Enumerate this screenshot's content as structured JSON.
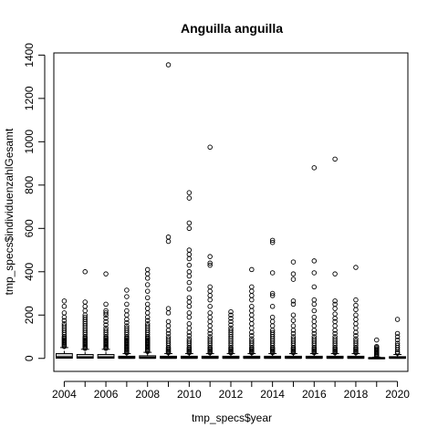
{
  "chart_data": {
    "type": "boxplot",
    "title": "Anguilla anguilla",
    "xlabel": "tmp_specs$year",
    "ylabel": "tmp_specs$individuenzahlGesamt",
    "ylim": [
      -60,
      1410
    ],
    "yticks": [
      0,
      200,
      400,
      600,
      800,
      1000,
      1200,
      1400
    ],
    "x_tick_labels": [
      "2004",
      "2006",
      "2008",
      "2010",
      "2012",
      "2014",
      "2016",
      "2018",
      "2020"
    ],
    "grid": false,
    "box_fill": "#d3d3d3",
    "series": [
      {
        "year": 2004,
        "q1": 1,
        "median": 5,
        "q3": 22,
        "whisker_low": 1,
        "whisker_high": 50,
        "outliers": [
          265,
          240,
          210,
          190,
          175,
          160,
          150,
          140,
          130,
          120,
          110,
          100,
          95,
          90,
          85,
          80,
          75,
          70,
          65,
          60,
          55
        ]
      },
      {
        "year": 2005,
        "q1": 1,
        "median": 4,
        "q3": 18,
        "whisker_low": 1,
        "whisker_high": 42,
        "outliers": [
          400,
          260,
          240,
          220,
          200,
          190,
          180,
          170,
          160,
          150,
          140,
          130,
          120,
          110,
          100,
          95,
          90,
          85,
          80,
          75,
          70,
          65,
          60,
          55,
          50,
          46
        ]
      },
      {
        "year": 2006,
        "q1": 1,
        "median": 4,
        "q3": 18,
        "whisker_low": 1,
        "whisker_high": 42,
        "outliers": [
          390,
          250,
          220,
          210,
          200,
          185,
          170,
          155,
          140,
          130,
          120,
          110,
          100,
          95,
          90,
          85,
          80,
          75,
          70,
          65,
          60,
          55,
          50,
          46
        ]
      },
      {
        "year": 2007,
        "q1": 1,
        "median": 3,
        "q3": 10,
        "whisker_low": 1,
        "whisker_high": 22,
        "outliers": [
          315,
          285,
          250,
          220,
          200,
          180,
          165,
          150,
          140,
          130,
          120,
          110,
          100,
          95,
          90,
          85,
          80,
          75,
          70,
          65,
          60,
          55,
          50,
          45,
          40,
          35,
          30,
          26
        ]
      },
      {
        "year": 2008,
        "q1": 1,
        "median": 3,
        "q3": 12,
        "whisker_low": 1,
        "whisker_high": 28,
        "outliers": [
          410,
          390,
          370,
          340,
          310,
          280,
          250,
          230,
          210,
          190,
          175,
          160,
          150,
          140,
          130,
          120,
          110,
          100,
          95,
          90,
          85,
          80,
          75,
          70,
          65,
          60,
          55,
          50,
          45,
          40,
          35,
          32
        ]
      },
      {
        "year": 2009,
        "q1": 1,
        "median": 3,
        "q3": 10,
        "whisker_low": 1,
        "whisker_high": 22,
        "outliers": [
          1355,
          560,
          540,
          230,
          210,
          170,
          150,
          130,
          115,
          100,
          90,
          80,
          70,
          60,
          50,
          45,
          40,
          35,
          30,
          26
        ]
      },
      {
        "year": 2010,
        "q1": 1,
        "median": 3,
        "q3": 10,
        "whisker_low": 1,
        "whisker_high": 22,
        "outliers": [
          765,
          740,
          625,
          600,
          500,
          480,
          460,
          430,
          400,
          380,
          350,
          320,
          280,
          260,
          240,
          210,
          190,
          160,
          140,
          120,
          105,
          90,
          80,
          70,
          60,
          50,
          45,
          40,
          35,
          30,
          26
        ]
      },
      {
        "year": 2011,
        "q1": 1,
        "median": 3,
        "q3": 10,
        "whisker_low": 1,
        "whisker_high": 22,
        "outliers": [
          975,
          470,
          440,
          430,
          330,
          310,
          290,
          270,
          240,
          210,
          190,
          170,
          150,
          130,
          115,
          100,
          90,
          80,
          70,
          60,
          50,
          45,
          40,
          35,
          30,
          26
        ]
      },
      {
        "year": 2012,
        "q1": 1,
        "median": 3,
        "q3": 10,
        "whisker_low": 1,
        "whisker_high": 22,
        "outliers": [
          215,
          200,
          185,
          170,
          155,
          140,
          130,
          120,
          110,
          100,
          90,
          80,
          70,
          60,
          50,
          45,
          40,
          35,
          30,
          26
        ]
      },
      {
        "year": 2013,
        "q1": 1,
        "median": 3,
        "q3": 10,
        "whisker_low": 1,
        "whisker_high": 22,
        "outliers": [
          410,
          330,
          310,
          290,
          270,
          240,
          220,
          200,
          180,
          160,
          140,
          120,
          105,
          90,
          80,
          70,
          60,
          50,
          45,
          40,
          35,
          30,
          26
        ]
      },
      {
        "year": 2014,
        "q1": 1,
        "median": 3,
        "q3": 10,
        "whisker_low": 1,
        "whisker_high": 22,
        "outliers": [
          545,
          535,
          395,
          300,
          290,
          240,
          190,
          170,
          150,
          130,
          120,
          110,
          100,
          90,
          80,
          70,
          60,
          50,
          45,
          40,
          35,
          30,
          26
        ]
      },
      {
        "year": 2015,
        "q1": 1,
        "median": 3,
        "q3": 10,
        "whisker_low": 1,
        "whisker_high": 22,
        "outliers": [
          445,
          390,
          365,
          265,
          250,
          200,
          175,
          150,
          130,
          115,
          100,
          90,
          80,
          70,
          60,
          50,
          45,
          40,
          35,
          30,
          26
        ]
      },
      {
        "year": 2016,
        "q1": 1,
        "median": 3,
        "q3": 10,
        "whisker_low": 1,
        "whisker_high": 22,
        "outliers": [
          880,
          450,
          395,
          330,
          270,
          250,
          220,
          190,
          170,
          150,
          130,
          115,
          100,
          90,
          80,
          70,
          60,
          50,
          45,
          40,
          35,
          30,
          26
        ]
      },
      {
        "year": 2017,
        "q1": 1,
        "median": 3,
        "q3": 10,
        "whisker_low": 1,
        "whisker_high": 22,
        "outliers": [
          920,
          390,
          265,
          250,
          230,
          205,
          185,
          170,
          150,
          130,
          115,
          100,
          90,
          80,
          70,
          60,
          50,
          45,
          40,
          35,
          30,
          26
        ]
      },
      {
        "year": 2018,
        "q1": 1,
        "median": 3,
        "q3": 10,
        "whisker_low": 1,
        "whisker_high": 22,
        "outliers": [
          420,
          270,
          245,
          225,
          200,
          180,
          160,
          140,
          120,
          105,
          90,
          80,
          70,
          60,
          50,
          45,
          40,
          35,
          30,
          26
        ]
      },
      {
        "year": 2019,
        "q1": 0,
        "median": 1,
        "q3": 3,
        "whisker_low": 0,
        "whisker_high": 6,
        "outliers": [
          85,
          55,
          50,
          45,
          40,
          35,
          30,
          25,
          20,
          16,
          12,
          9
        ]
      },
      {
        "year": 2020,
        "q1": 1,
        "median": 3,
        "q3": 8,
        "whisker_low": 1,
        "whisker_high": 18,
        "outliers": [
          180,
          115,
          100,
          85,
          70,
          60,
          50,
          40,
          30,
          24
        ]
      }
    ]
  }
}
